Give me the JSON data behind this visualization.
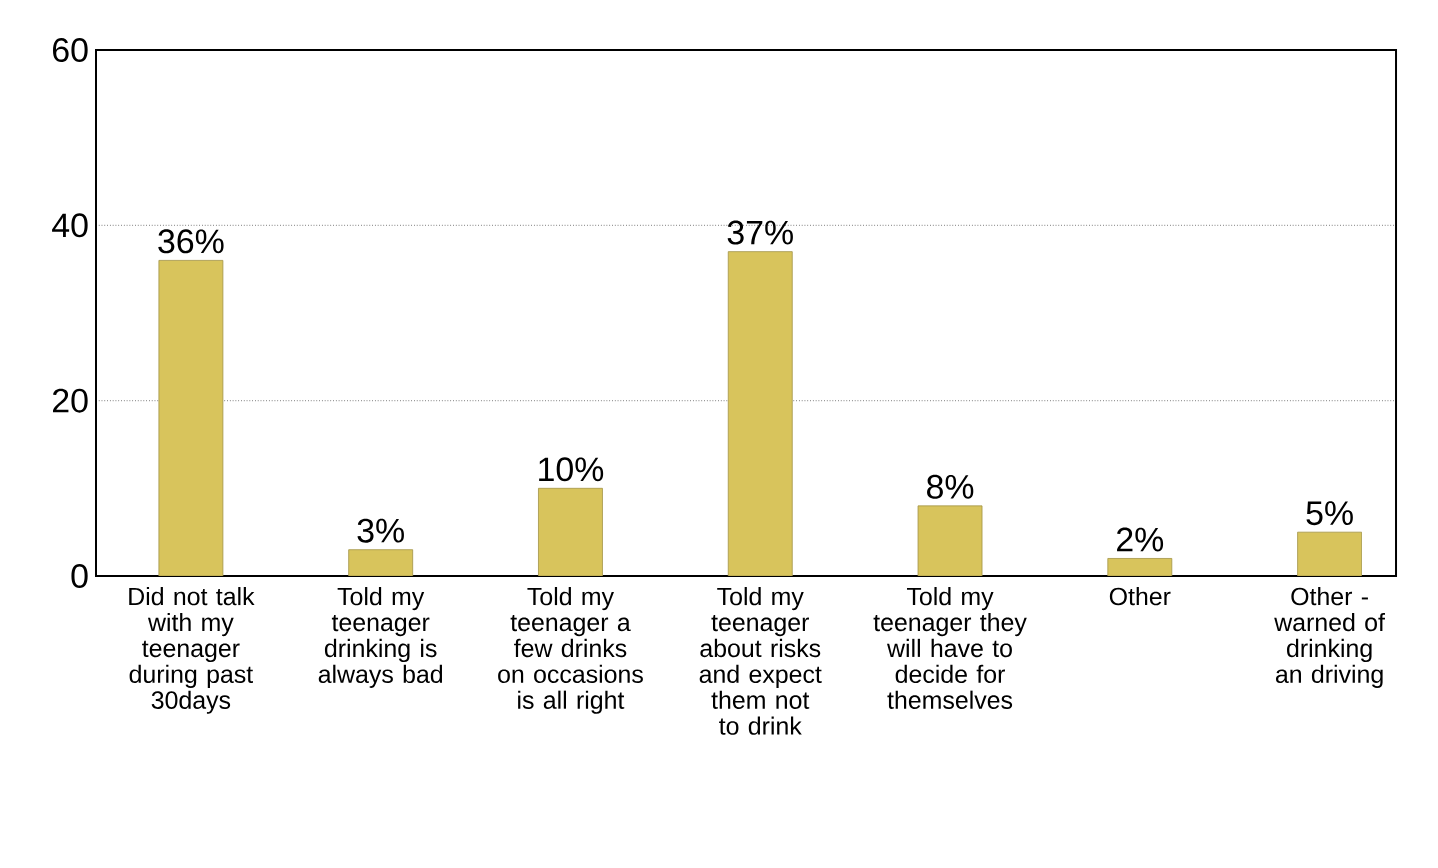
{
  "chart_data": {
    "type": "bar",
    "categories": [
      "Did not talk with my teenager during past 30days",
      "Told my teenager drinking is always bad",
      "Told my teenager a few drinks on occasions is all right",
      "Told my teenager about risks and expect them not to drink",
      "Told my teenager they will have to decide for themselves",
      "Other",
      "Other - warned of drinking an driving"
    ],
    "values": [
      36,
      3,
      10,
      37,
      8,
      2,
      5
    ],
    "value_labels": [
      "36%",
      "3%",
      "10%",
      "37%",
      "8%",
      "2%",
      "5%"
    ],
    "color": "#d8c45c",
    "ylim": [
      0,
      60
    ],
    "yticks": [
      0,
      20,
      40,
      60
    ],
    "grid": "y"
  }
}
